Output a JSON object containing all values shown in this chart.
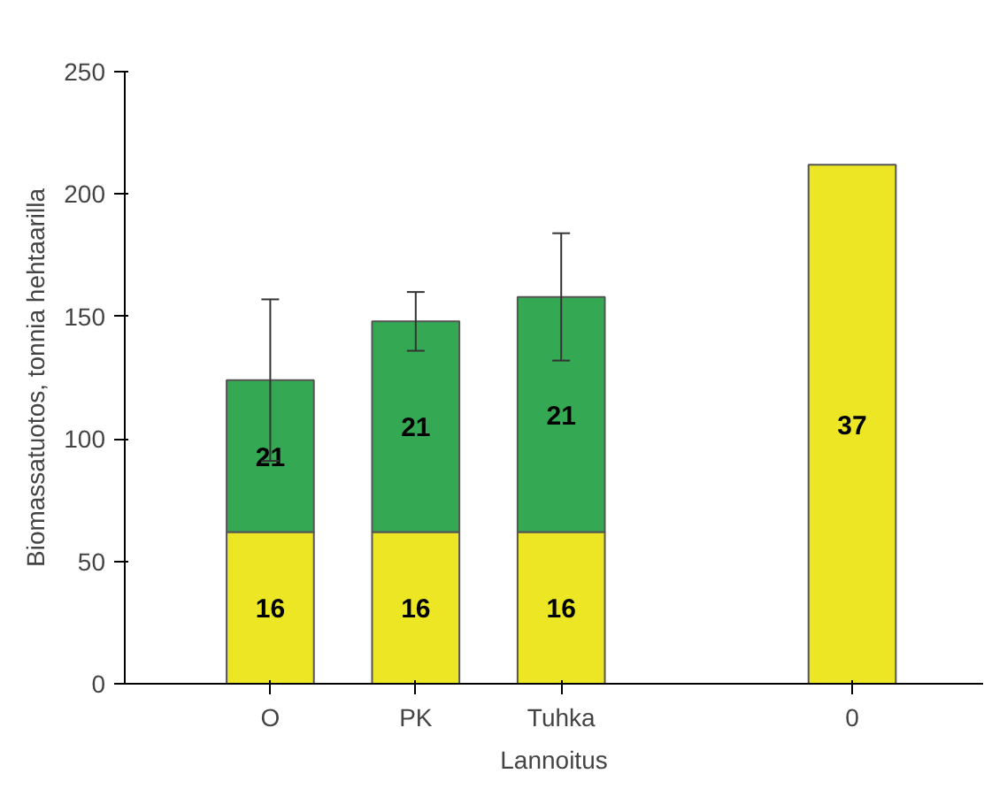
{
  "chart_data": {
    "type": "bar",
    "stacked": true,
    "xlabel": "Lannoitus",
    "ylabel": "Biomassatuotos, tonnia hehtaarilla",
    "categories": [
      "O",
      "PK",
      "Tuhka",
      null,
      "0"
    ],
    "ylim": [
      0,
      250
    ],
    "yticks": [
      0,
      50,
      100,
      150,
      200,
      250
    ],
    "grid": false,
    "series": [
      {
        "color": "#ede625",
        "values": [
          62,
          62,
          62,
          null,
          212
        ]
      },
      {
        "color": "#34a853",
        "values": [
          62,
          86,
          96,
          null,
          null
        ],
        "errors": [
          [
            91,
            157
          ],
          [
            136,
            160
          ],
          [
            132,
            184
          ],
          null,
          null
        ]
      }
    ],
    "annotations": [
      "16",
      "21",
      "16",
      "21",
      "16",
      "21",
      "37"
    ]
  }
}
